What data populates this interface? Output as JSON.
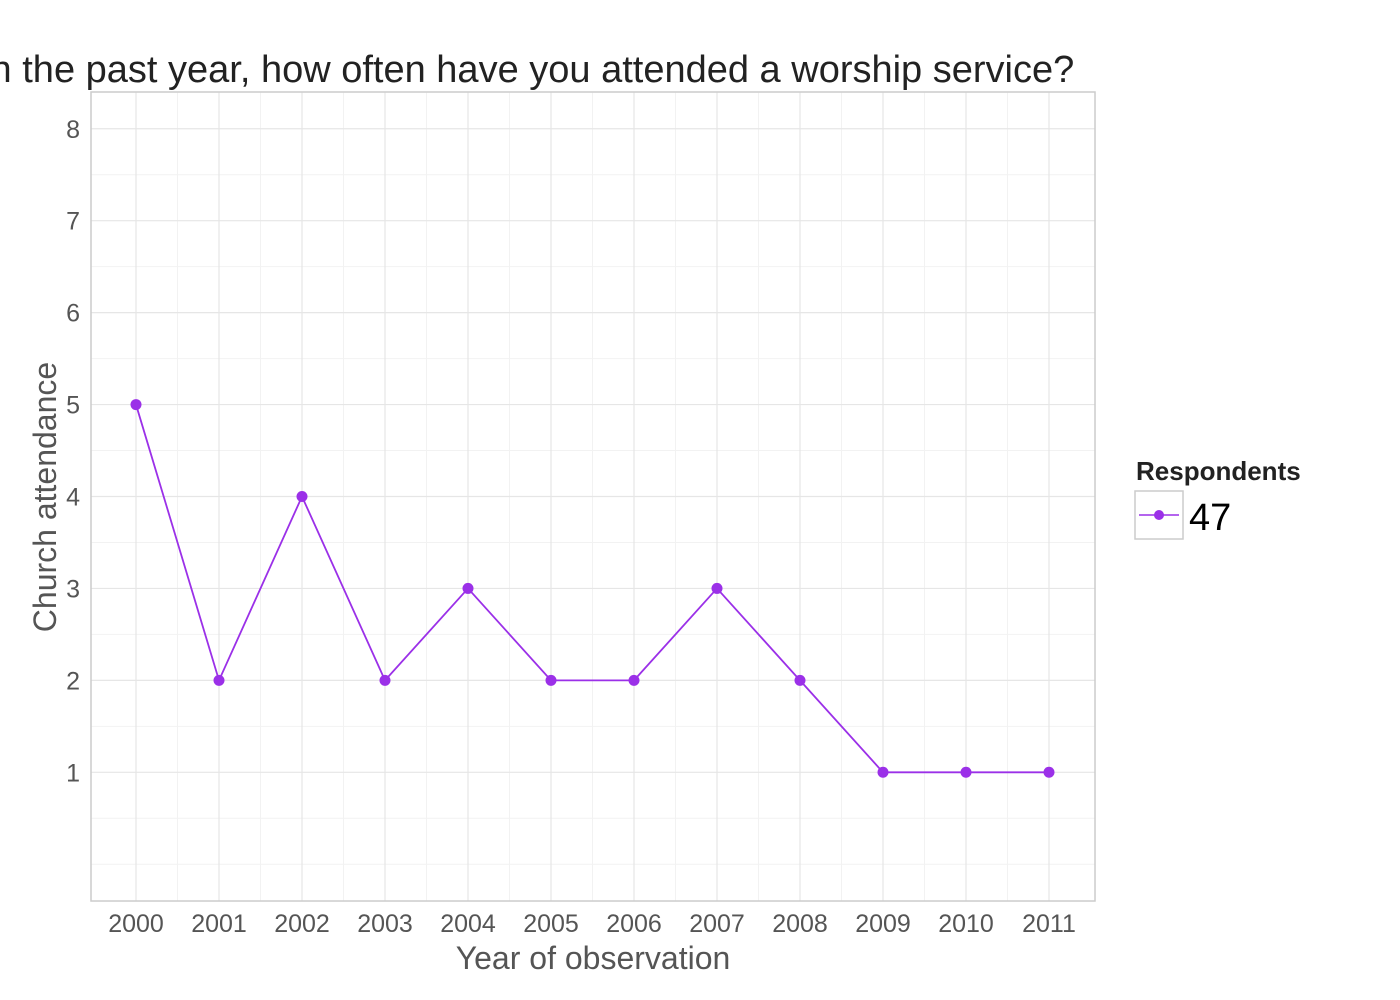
{
  "chart_data": {
    "type": "line",
    "title": "In the past year, how often have you attended a worship service?",
    "xlabel": "Year of observation",
    "ylabel": "Church attendance",
    "categories": [
      "2000",
      "2001",
      "2002",
      "2003",
      "2004",
      "2005",
      "2006",
      "2007",
      "2008",
      "2009",
      "2010",
      "2011"
    ],
    "yticks": [
      "1",
      "2",
      "3",
      "4",
      "5",
      "6",
      "7",
      "8"
    ],
    "ylim": [
      -0.4,
      8.4
    ],
    "grid": true,
    "legend": {
      "title": "Respondents",
      "placement": "right"
    },
    "series": [
      {
        "name": "47",
        "color": "#9B30E8",
        "values": [
          5,
          2,
          4,
          2,
          3,
          2,
          2,
          3,
          2,
          1,
          1,
          1
        ]
      }
    ]
  }
}
